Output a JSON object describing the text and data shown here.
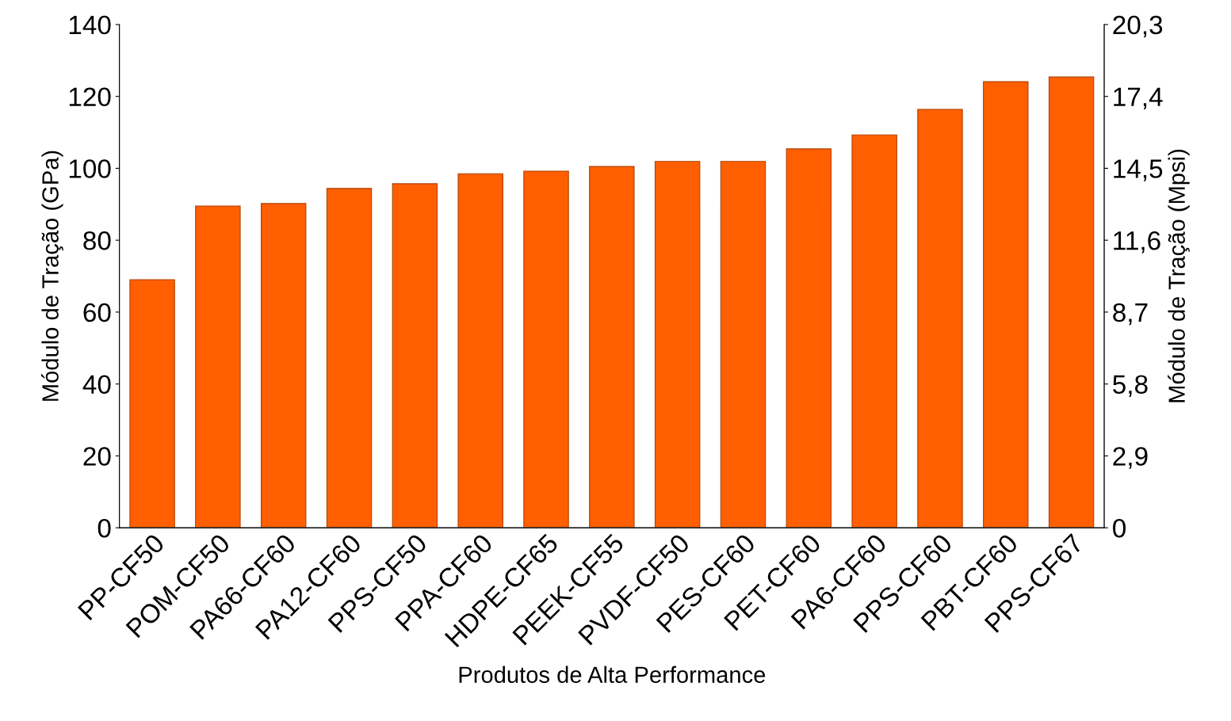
{
  "chart_data": {
    "type": "bar",
    "xlabel": "Produtos de Alta Performance",
    "ylabel": "Módulo de Tração (GPa)",
    "y2label": "Módulo de Tração (Mpsi)",
    "categories": [
      "PP-CF50",
      "POM-CF50",
      "PA66-CF60",
      "PA12-CF60",
      "PPS-CF50",
      "PPA-CF60",
      "HDPE-CF65",
      "PEEK-CF55",
      "PVDF-CF50",
      "PES-CF60",
      "PET-CF60",
      "PA6-CF60",
      "PPS-CF60",
      "PBT-CF60",
      "PPS-CF67"
    ],
    "values": [
      69,
      89.5,
      90.2,
      94.4,
      95.7,
      98.5,
      99.2,
      100.5,
      101.9,
      101.9,
      105.4,
      109.3,
      116.4,
      124.1,
      125.4
    ],
    "color": "#ff5f00",
    "ylim": [
      0,
      140
    ],
    "yticks": [
      0,
      20,
      40,
      60,
      80,
      100,
      120,
      140
    ],
    "y2lim": [
      0,
      20.3
    ],
    "y2ticks": [
      0,
      {
        "value": 2.9,
        "label": "2,9"
      },
      {
        "value": 5.8,
        "label": "5,8"
      },
      {
        "value": 8.7,
        "label": "8,7"
      },
      {
        "value": 11.6,
        "label": "11,6"
      },
      {
        "value": 14.5,
        "label": "14,5"
      },
      {
        "value": 17.4,
        "label": "17,4"
      },
      {
        "value": 20.3,
        "label": "20,3"
      }
    ],
    "grid": false
  }
}
